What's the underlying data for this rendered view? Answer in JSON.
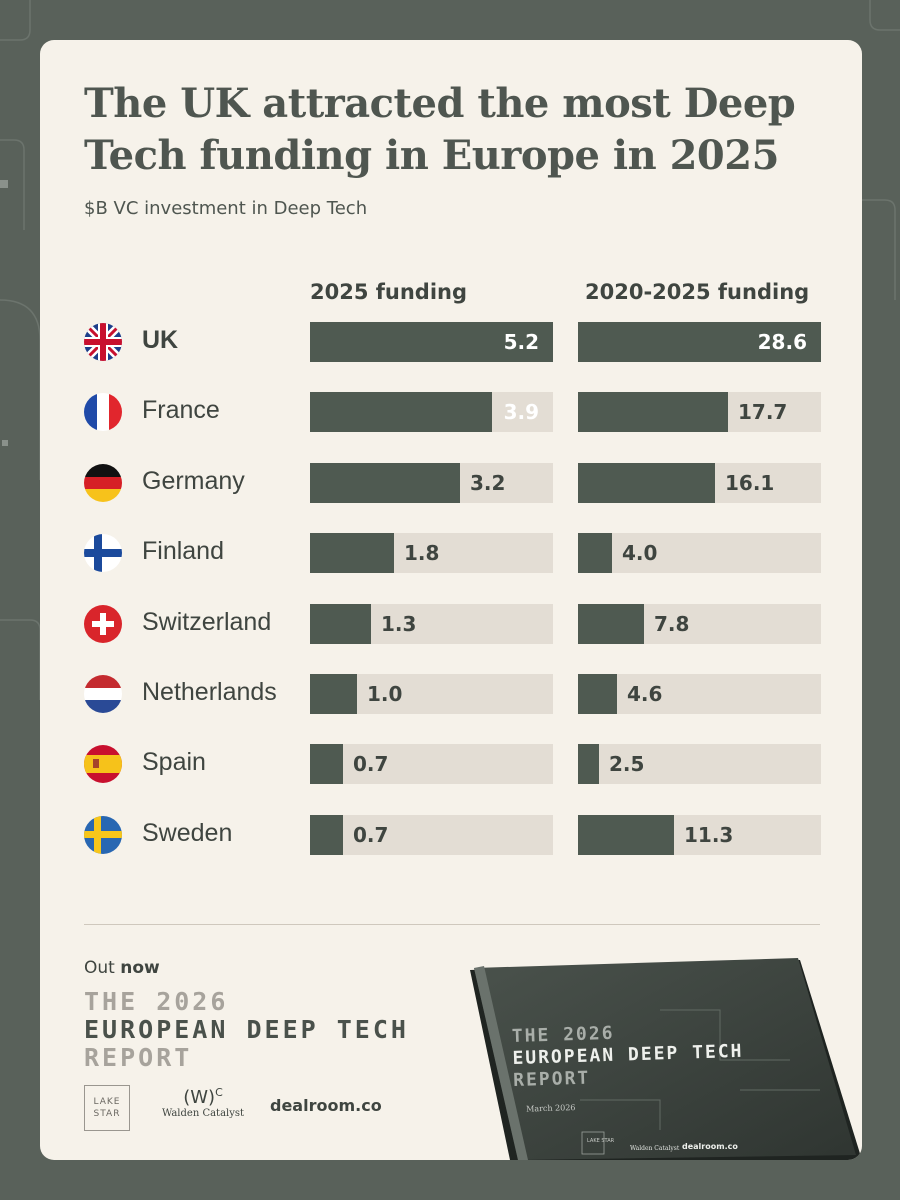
{
  "colors": {
    "background": "#59615a",
    "card": "#f6f2ea",
    "bar": "#4f5a51",
    "track": "#e3ddd4",
    "text": "#3f4540"
  },
  "header": {
    "title_line1": "The UK attracted the most Deep",
    "title_line2": "Tech funding in Europe in 2025",
    "subtitle": "$B VC investment in Deep Tech"
  },
  "chart_data": {
    "type": "bar",
    "title": "The UK attracted the most Deep Tech funding in Europe in 2025",
    "subtitle": "$B VC investment in Deep Tech",
    "categories": [
      "UK",
      "France",
      "Germany",
      "Finland",
      "Switzerland",
      "Netherlands",
      "Spain",
      "Sweden"
    ],
    "flag_icons": [
      "uk-flag-icon",
      "france-flag-icon",
      "germany-flag-icon",
      "finland-flag-icon",
      "switzerland-flag-icon",
      "netherlands-flag-icon",
      "spain-flag-icon",
      "sweden-flag-icon"
    ],
    "series": [
      {
        "name": "2025 funding",
        "values": [
          5.2,
          3.9,
          3.2,
          1.8,
          1.3,
          1.0,
          0.7,
          0.7
        ],
        "display": [
          "5.2",
          "3.9",
          "3.2",
          "1.8",
          "1.3",
          "1.0",
          "0.7",
          "0.7"
        ],
        "max": 5.2
      },
      {
        "name": "2020-2025 funding",
        "values": [
          28.6,
          17.7,
          16.1,
          4.0,
          7.8,
          4.6,
          2.5,
          11.3
        ],
        "display": [
          "28.6",
          "17.7",
          "16.1",
          "4.0",
          "7.8",
          "4.6",
          "2.5",
          "11.3"
        ],
        "max": 28.6
      }
    ],
    "orientation": "horizontal",
    "legend": "column-headers"
  },
  "footer": {
    "out_prefix": "Out",
    "out_bold": "now",
    "report_line1": "THE 2026",
    "report_line2": "EUROPEAN DEEP TECH",
    "report_line3": "REPORT",
    "logo_lake": "LAKE STAR",
    "logo_walden_mark": "(W)",
    "logo_walden_sup": "C",
    "logo_walden_name": "Walden Catalyst",
    "logo_dealroom": "dealroom.co"
  },
  "book": {
    "line1": "THE 2026",
    "line2": "EUROPEAN DEEP TECH",
    "line3": "REPORT",
    "date": "March 2026",
    "logo_lake": "LAKE STAR",
    "logo_walden": "Walden Catalyst",
    "logo_dealroom": "dealroom.co"
  }
}
